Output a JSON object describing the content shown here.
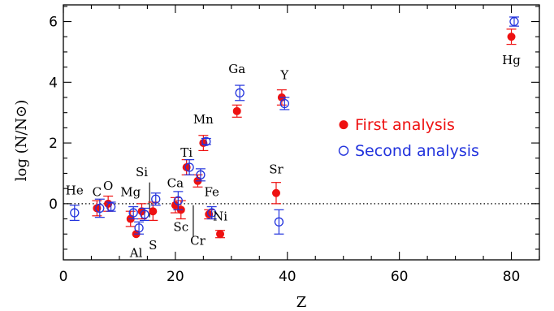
{
  "chart_data": {
    "type": "scatter",
    "xlabel": "Z",
    "ylabel": "log (N/N⊙)",
    "xlim": [
      0,
      85
    ],
    "ylim": [
      -1.85,
      6.55
    ],
    "xticks": [
      0,
      20,
      40,
      60,
      80
    ],
    "yticks": [
      0,
      2,
      4,
      6
    ],
    "reference_line": {
      "y": 0,
      "style": "dotted"
    },
    "legend_position": "right",
    "series": [
      {
        "name": "First analysis",
        "marker": "filled-circle",
        "color": "#ee1111",
        "points": [
          {
            "x": 6,
            "y": -0.15,
            "err": 0.25
          },
          {
            "x": 8,
            "y": 0.0,
            "err": 0.25
          },
          {
            "x": 12,
            "y": -0.5,
            "err": 0.25
          },
          {
            "x": 13,
            "y": -1.0,
            "err": 0.0
          },
          {
            "x": 14,
            "y": -0.25,
            "err": 0.25
          },
          {
            "x": 16,
            "y": -0.25,
            "err": 0.3
          },
          {
            "x": 20,
            "y": -0.05,
            "err": 0.25
          },
          {
            "x": 21,
            "y": -0.2,
            "err": 0.3
          },
          {
            "x": 22,
            "y": 1.2,
            "err": 0.25
          },
          {
            "x": 24,
            "y": 0.75,
            "err": 0.2
          },
          {
            "x": 25,
            "y": 2.0,
            "err": 0.25
          },
          {
            "x": 26,
            "y": -0.35,
            "err": 0.15
          },
          {
            "x": 28,
            "y": -1.0,
            "err": 0.12
          },
          {
            "x": 31,
            "y": 3.05,
            "err": 0.2
          },
          {
            "x": 38,
            "y": 0.35,
            "err": 0.35
          },
          {
            "x": 39,
            "y": 3.5,
            "err": 0.25
          },
          {
            "x": 80,
            "y": 5.5,
            "err": 0.25
          }
        ]
      },
      {
        "name": "Second analysis",
        "marker": "open-circle",
        "color": "#2233dd",
        "points": [
          {
            "x": 2,
            "y": -0.3,
            "err": 0.25
          },
          {
            "x": 6.5,
            "y": -0.15,
            "err": 0.3
          },
          {
            "x": 8.5,
            "y": -0.1,
            "err": 0.15
          },
          {
            "x": 12.5,
            "y": -0.3,
            "err": 0.2
          },
          {
            "x": 13.5,
            "y": -0.8,
            "err": 0.2
          },
          {
            "x": 14.5,
            "y": -0.35,
            "err": 0.2
          },
          {
            "x": 16.5,
            "y": 0.15,
            "err": 0.2
          },
          {
            "x": 20.5,
            "y": 0.1,
            "err": 0.3
          },
          {
            "x": 22.5,
            "y": 1.2,
            "err": 0.25
          },
          {
            "x": 24.5,
            "y": 0.95,
            "err": 0.2
          },
          {
            "x": 25.5,
            "y": 2.05,
            "err": 0.1
          },
          {
            "x": 26.5,
            "y": -0.3,
            "err": 0.2
          },
          {
            "x": 31.5,
            "y": 3.65,
            "err": 0.25
          },
          {
            "x": 38.5,
            "y": -0.6,
            "err": 0.4
          },
          {
            "x": 39.5,
            "y": 3.3,
            "err": 0.2
          },
          {
            "x": 80.5,
            "y": 6.0,
            "err": 0.15
          }
        ]
      }
    ],
    "element_labels": [
      {
        "text": "He",
        "x": 2,
        "y": 0.3
      },
      {
        "text": "C",
        "x": 6,
        "y": 0.25
      },
      {
        "text": "O",
        "x": 8,
        "y": 0.45
      },
      {
        "text": "Mg",
        "x": 12,
        "y": 0.25
      },
      {
        "text": "Si",
        "x": 14,
        "y": 0.9
      },
      {
        "text": "Al",
        "x": 13,
        "y": -1.75
      },
      {
        "text": "S",
        "x": 16,
        "y": -1.5
      },
      {
        "text": "Ca",
        "x": 20,
        "y": 0.55
      },
      {
        "text": "Sc",
        "x": 21,
        "y": -0.9
      },
      {
        "text": "Ti",
        "x": 22,
        "y": 1.55
      },
      {
        "text": "Cr",
        "x": 24,
        "y": -1.35
      },
      {
        "text": "Mn",
        "x": 25,
        "y": 2.65
      },
      {
        "text": "Fe",
        "x": 26.5,
        "y": 0.25
      },
      {
        "text": "Ni",
        "x": 28,
        "y": -0.55
      },
      {
        "text": "Ga",
        "x": 31,
        "y": 4.3
      },
      {
        "text": "Sr",
        "x": 38,
        "y": 1.0
      },
      {
        "text": "Y",
        "x": 39.5,
        "y": 4.1
      },
      {
        "text": "Hg",
        "x": 80,
        "y": 4.6
      }
    ]
  }
}
